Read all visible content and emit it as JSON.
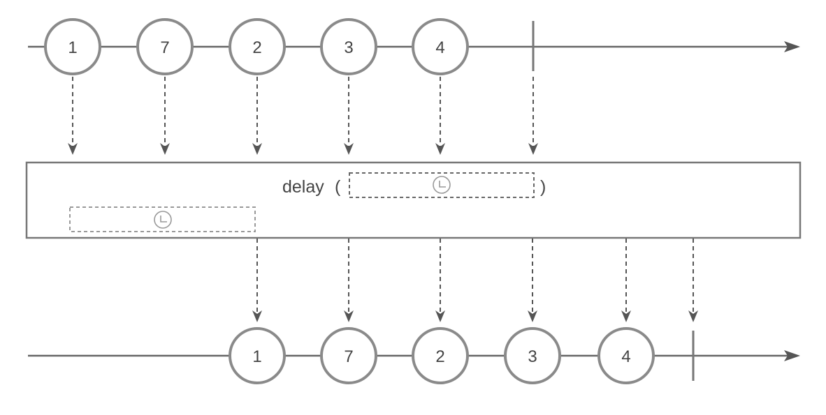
{
  "colors": {
    "line": "#666666",
    "marble_stroke": "#8a8a8a",
    "marble_fill": "#ffffff",
    "text": "#444444",
    "dashed": "#555555",
    "dashed_box": "#888888",
    "operator_box_stroke": "#777777",
    "clock": "#999999"
  },
  "input_stream": {
    "marbles": [
      "1",
      "7",
      "2",
      "3",
      "4"
    ],
    "completes": true
  },
  "operator": {
    "name": "delay",
    "open_paren": "(",
    "close_paren": ")",
    "argument_icon": "clock-icon",
    "delay_indicator_icon": "clock-icon"
  },
  "output_stream": {
    "marbles": [
      "1",
      "7",
      "2",
      "3",
      "4"
    ],
    "completes": true
  }
}
